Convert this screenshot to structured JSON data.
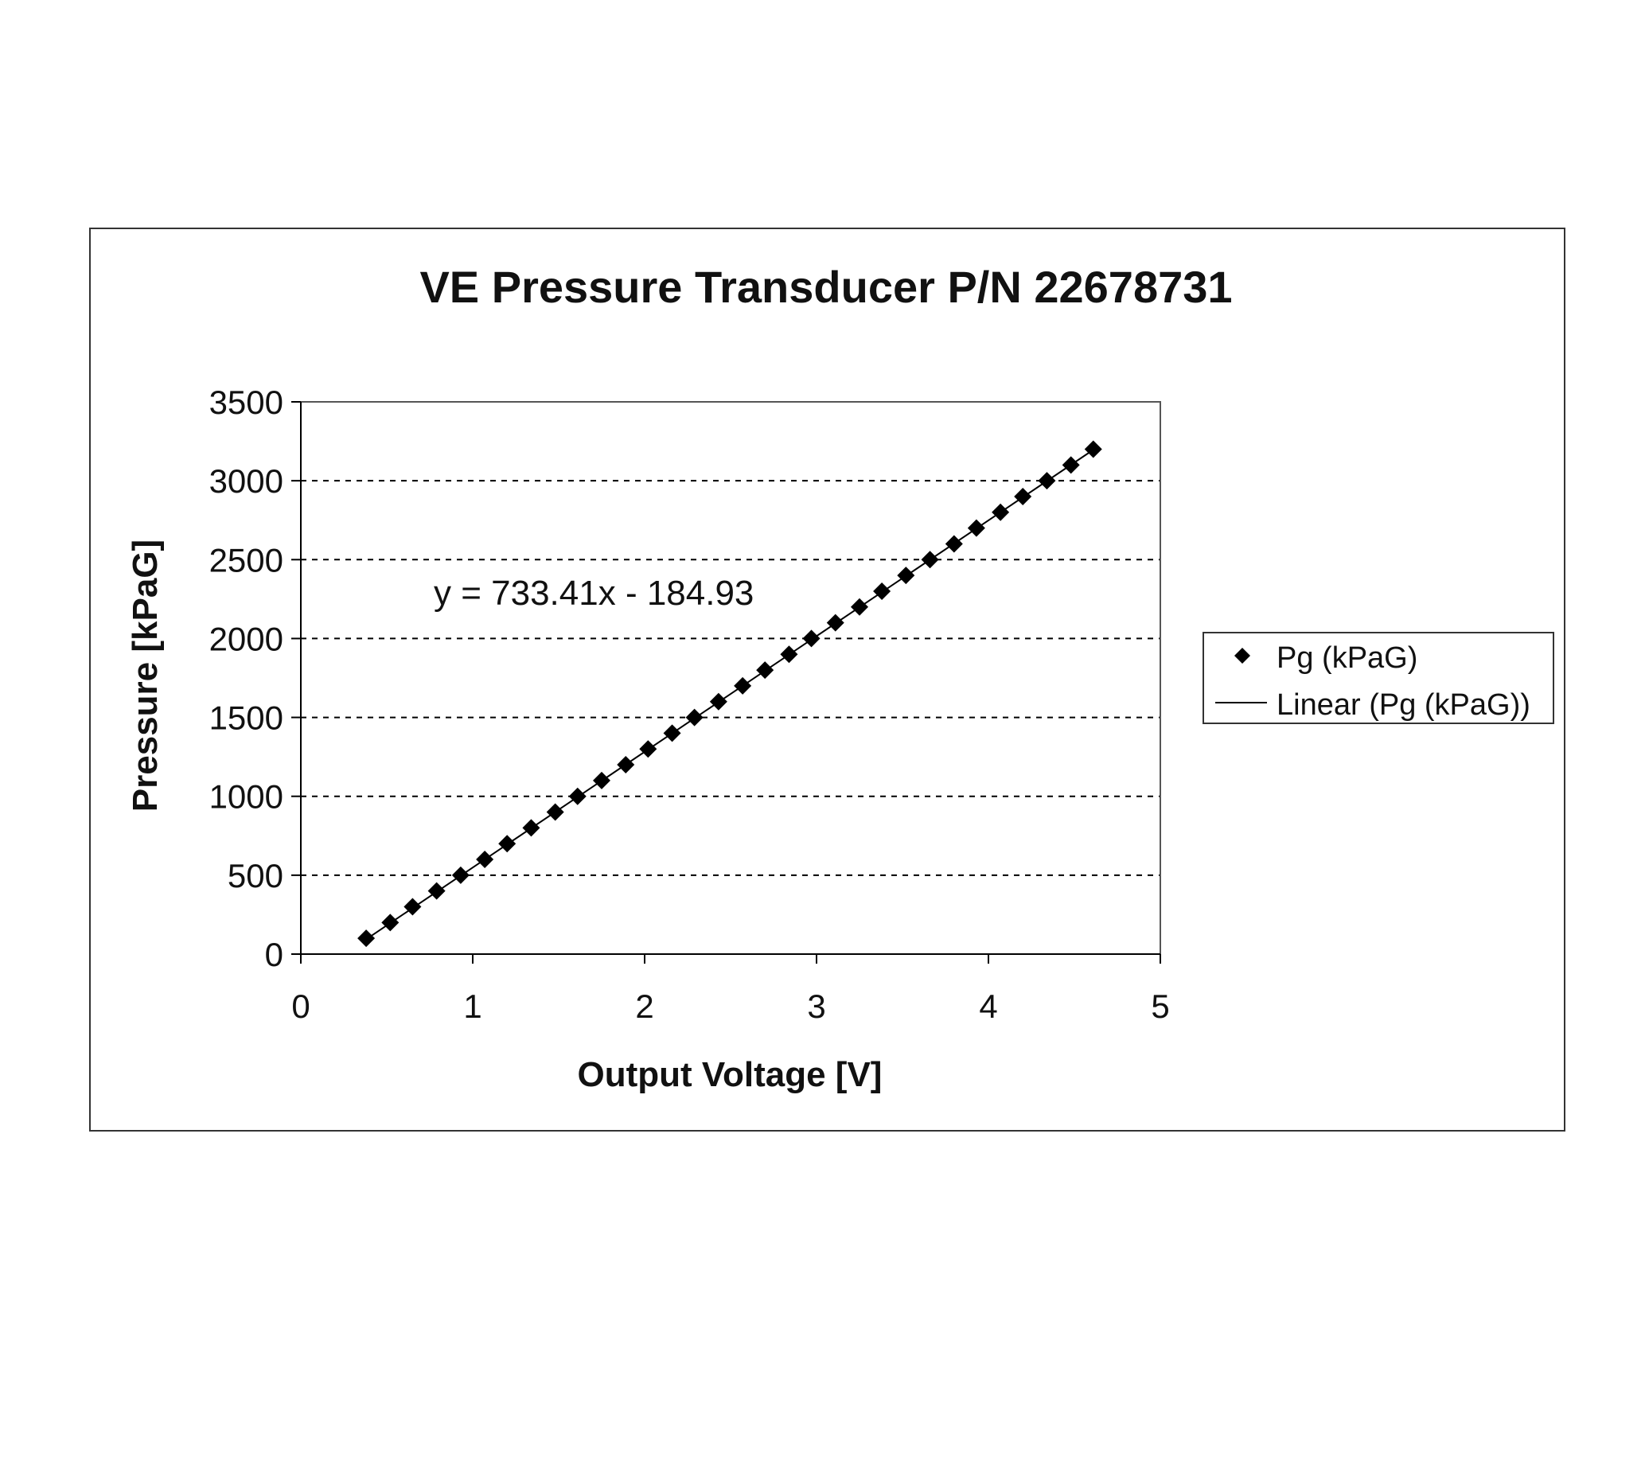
{
  "chart_data": {
    "type": "scatter",
    "title": "VE Pressure Transducer P/N 22678731",
    "xlabel": "Output Voltage [V]",
    "ylabel": "Pressure [kPaG]",
    "xlim": [
      0,
      5
    ],
    "ylim": [
      0,
      3500
    ],
    "x_ticks": [
      0,
      1,
      2,
      3,
      4,
      5
    ],
    "y_ticks": [
      0,
      500,
      1000,
      1500,
      2000,
      2500,
      3000,
      3500
    ],
    "x_tick_labels": [
      "0",
      "1",
      "2",
      "3",
      "4",
      "5"
    ],
    "y_tick_labels": [
      "0",
      "500",
      "1000",
      "1500",
      "2000",
      "2500",
      "3000",
      "3500"
    ],
    "grid": {
      "horizontal": true,
      "style": "dashed"
    },
    "legend_position": "right",
    "series": [
      {
        "name": "Pg (kPaG)",
        "marker": "diamond",
        "color": "#000000",
        "points": [
          [
            0.38,
            100
          ],
          [
            0.52,
            200
          ],
          [
            0.65,
            300
          ],
          [
            0.79,
            400
          ],
          [
            0.93,
            500
          ],
          [
            1.07,
            600
          ],
          [
            1.2,
            700
          ],
          [
            1.34,
            800
          ],
          [
            1.48,
            900
          ],
          [
            1.61,
            1000
          ],
          [
            1.75,
            1100
          ],
          [
            1.89,
            1200
          ],
          [
            2.02,
            1300
          ],
          [
            2.16,
            1400
          ],
          [
            2.29,
            1500
          ],
          [
            2.43,
            1600
          ],
          [
            2.57,
            1700
          ],
          [
            2.7,
            1800
          ],
          [
            2.84,
            1900
          ],
          [
            2.97,
            2000
          ],
          [
            3.11,
            2100
          ],
          [
            3.25,
            2200
          ],
          [
            3.38,
            2300
          ],
          [
            3.52,
            2400
          ],
          [
            3.66,
            2500
          ],
          [
            3.8,
            2600
          ],
          [
            3.93,
            2700
          ],
          [
            4.07,
            2800
          ],
          [
            4.2,
            2900
          ],
          [
            4.34,
            3000
          ],
          [
            4.48,
            3100
          ],
          [
            4.61,
            3200
          ]
        ]
      }
    ],
    "trendline": {
      "name": "Linear (Pg (kPaG))",
      "slope": 733.41,
      "intercept": -184.93,
      "x_range": [
        0.38,
        4.61
      ],
      "color": "#000000"
    },
    "equation_label": "y = 733.41x - 184.93",
    "legend": {
      "items": [
        {
          "label": "Pg (kPaG)",
          "symbol": "diamond"
        },
        {
          "label": "Linear (Pg (kPaG))",
          "symbol": "line"
        }
      ]
    }
  }
}
